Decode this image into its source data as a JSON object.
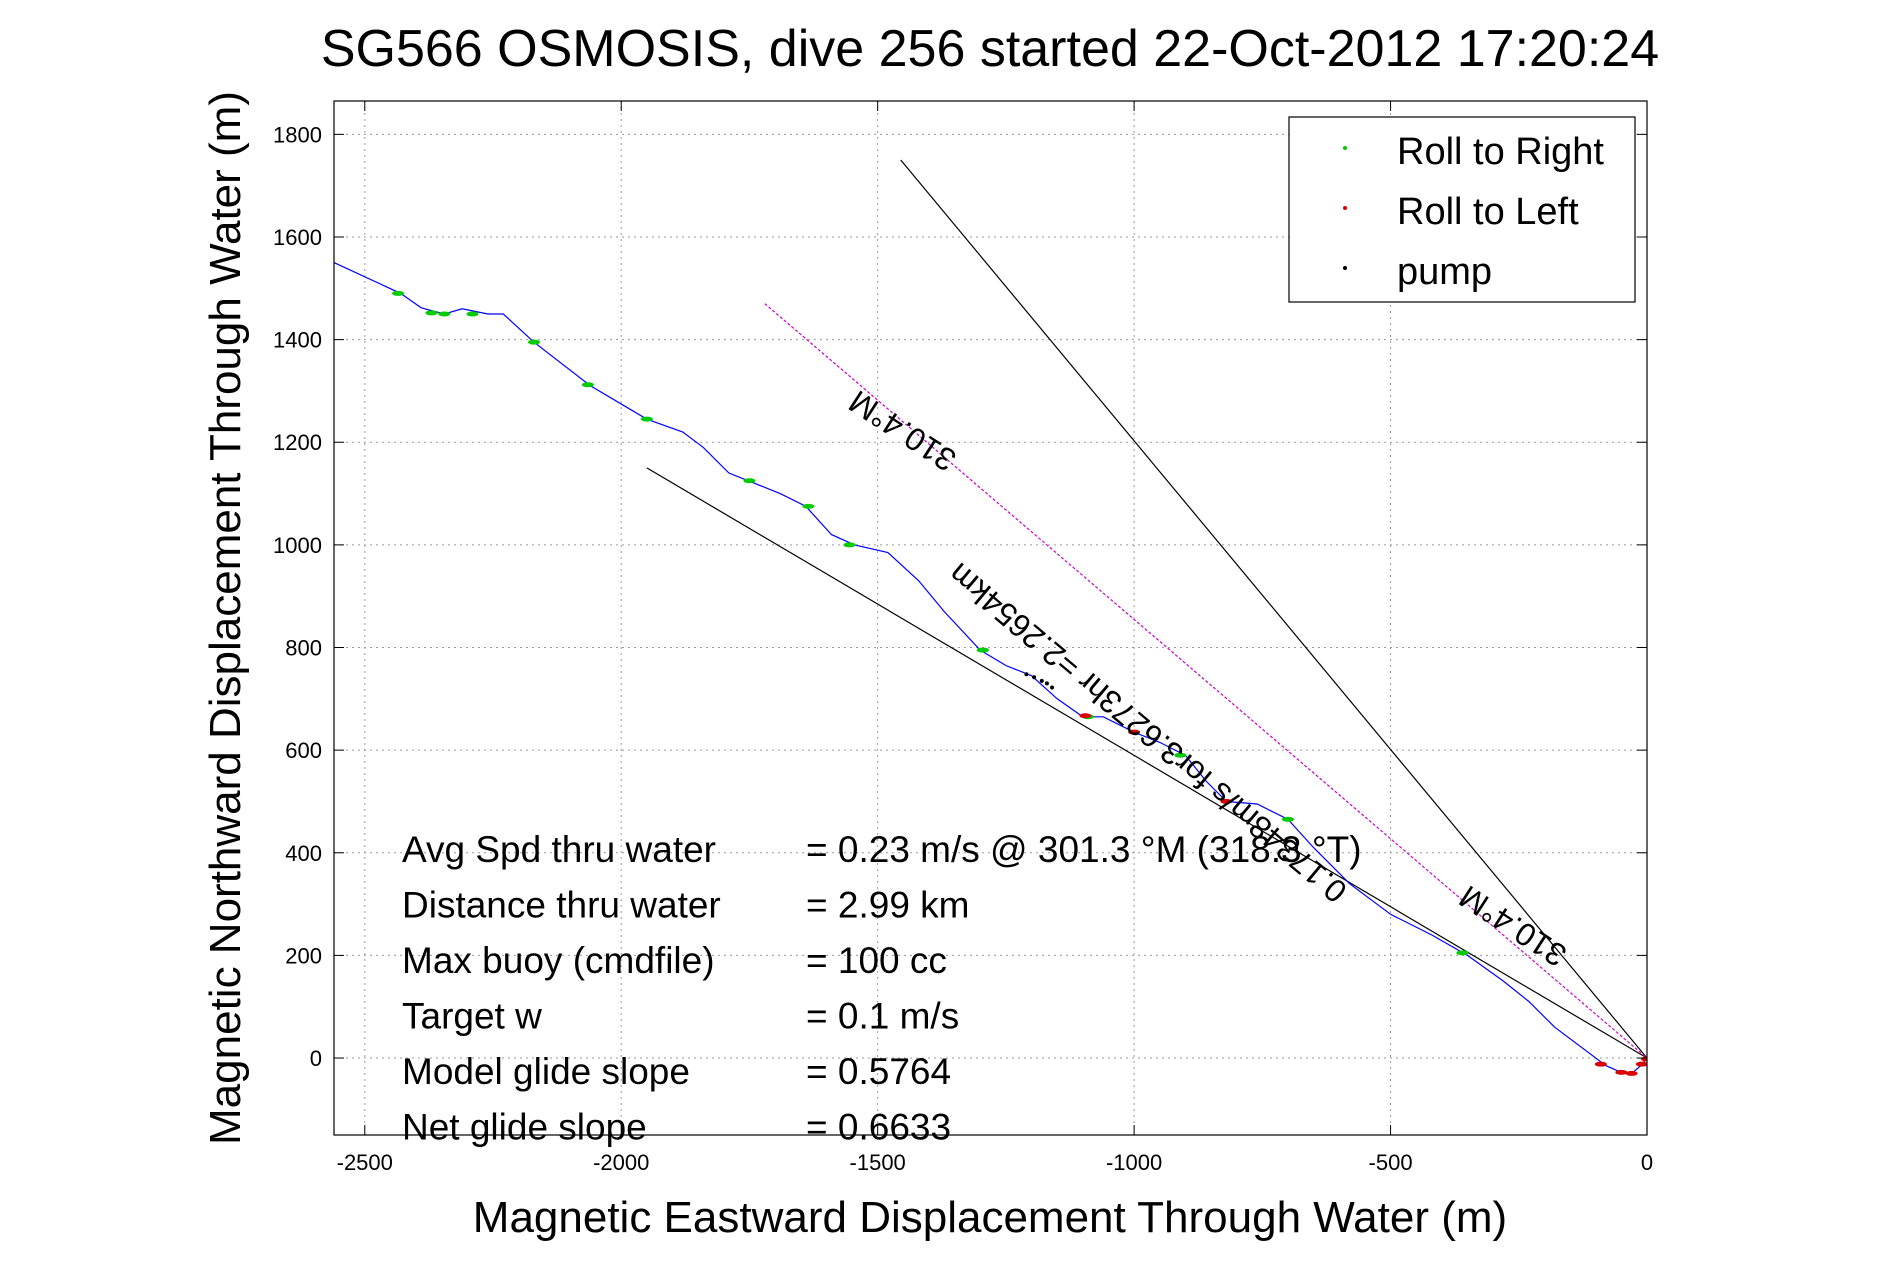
{
  "chart_data": {
    "type": "line",
    "title": "SG566 OSMOSIS, dive 256 started 22-Oct-2012 17:20:24",
    "xlabel": "Magnetic Eastward Displacement Through Water (m)",
    "ylabel": "Magnetic Northward Displacement Through Water (m)",
    "xlim": [
      -2560,
      0
    ],
    "ylim": [
      -150,
      1865
    ],
    "xticks": [
      -2500,
      -2000,
      -1500,
      -1000,
      -500,
      0
    ],
    "yticks": [
      0,
      200,
      400,
      600,
      800,
      1000,
      1200,
      1400,
      1600,
      1800
    ],
    "grid": true,
    "legend": {
      "placement": "top-right",
      "entries": [
        {
          "label": "Roll to Right",
          "color": "#00cc00"
        },
        {
          "label": "Roll to Left",
          "color": "#dd0000"
        },
        {
          "label": "pump",
          "color": "#000000"
        }
      ]
    },
    "track_color": "#0000ff",
    "track": [
      [
        -2560,
        1550
      ],
      [
        -2430,
        1490
      ],
      [
        -2390,
        1462
      ],
      [
        -2345,
        1450
      ],
      [
        -2310,
        1460
      ],
      [
        -2260,
        1450
      ],
      [
        -2230,
        1450
      ],
      [
        -2170,
        1395
      ],
      [
        -2060,
        1310
      ],
      [
        -1950,
        1245
      ],
      [
        -1880,
        1220
      ],
      [
        -1840,
        1190
      ],
      [
        -1790,
        1140
      ],
      [
        -1740,
        1120
      ],
      [
        -1690,
        1100
      ],
      [
        -1640,
        1075
      ],
      [
        -1590,
        1020
      ],
      [
        -1545,
        1000
      ],
      [
        -1480,
        985
      ],
      [
        -1420,
        930
      ],
      [
        -1370,
        870
      ],
      [
        -1300,
        795
      ],
      [
        -1250,
        765
      ],
      [
        -1200,
        745
      ],
      [
        -1150,
        700
      ],
      [
        -1100,
        665
      ],
      [
        -1060,
        665
      ],
      [
        -1000,
        635
      ],
      [
        -950,
        615
      ],
      [
        -900,
        590
      ],
      [
        -860,
        540
      ],
      [
        -820,
        500
      ],
      [
        -760,
        495
      ],
      [
        -700,
        465
      ],
      [
        -650,
        410
      ],
      [
        -580,
        340
      ],
      [
        -500,
        280
      ],
      [
        -420,
        240
      ],
      [
        -350,
        200
      ],
      [
        -280,
        150
      ],
      [
        -230,
        110
      ],
      [
        -180,
        60
      ],
      [
        -120,
        15
      ],
      [
        -80,
        -15
      ],
      [
        -50,
        -28
      ],
      [
        -30,
        -30
      ],
      [
        -12,
        -15
      ],
      [
        0,
        0
      ]
    ],
    "roll_right": [
      [
        -2435,
        1490
      ],
      [
        -2370,
        1452
      ],
      [
        -2345,
        1450
      ],
      [
        -2290,
        1450
      ],
      [
        -2170,
        1395
      ],
      [
        -2065,
        1312
      ],
      [
        -1950,
        1245
      ],
      [
        -1750,
        1125
      ],
      [
        -1635,
        1075
      ],
      [
        -1555,
        1000
      ],
      [
        -1295,
        795
      ],
      [
        -1090,
        665
      ],
      [
        -910,
        590
      ],
      [
        -700,
        465
      ],
      [
        -360,
        205
      ]
    ],
    "roll_left": [
      [
        -1095,
        667
      ],
      [
        -1000,
        635
      ],
      [
        -820,
        500
      ],
      [
        -90,
        -12
      ],
      [
        -50,
        -28
      ],
      [
        -30,
        -30
      ],
      [
        -10,
        -12
      ],
      [
        0,
        -2
      ]
    ],
    "pump": [
      [
        -1210,
        748
      ],
      [
        -1195,
        742
      ],
      [
        -1180,
        735
      ],
      [
        -1170,
        730
      ],
      [
        -1160,
        722
      ]
    ],
    "reference_lines": [
      {
        "color": "#000000",
        "points": [
          [
            -1950,
            1150
          ],
          [
            0,
            0
          ]
        ]
      },
      {
        "color": "#000000",
        "points": [
          [
            -1455,
            1750
          ],
          [
            0,
            0
          ]
        ]
      },
      {
        "color": "#cc00cc",
        "points": [
          [
            -1720,
            1470
          ],
          [
            0,
            0
          ]
        ]
      }
    ],
    "line_labels": [
      {
        "text": "310.4°M",
        "at": [
          -1440,
          1240
        ],
        "angle": 213
      },
      {
        "text": "0.17348m/s for3.6273hr =2.2654km",
        "at": [
          -960,
          650
        ],
        "angle": 220
      },
      {
        "text": "310.4°M",
        "at": [
          -250,
          275
        ],
        "angle": 213
      }
    ],
    "stats": [
      {
        "label": "Avg Spd thru water",
        "value": "=  0.23 m/s @  301.3 °M (318.3 °T)"
      },
      {
        "label": "Distance thru water",
        "value": "=  2.99 km"
      },
      {
        "label": "Max buoy (cmdfile)",
        "value": "= 100 cc"
      },
      {
        "label": "Target w",
        "value": "= 0.1 m/s"
      },
      {
        "label": "Model glide slope",
        "value": "= 0.5764"
      },
      {
        "label": "Net glide slope",
        "value": "= 0.6633"
      }
    ]
  }
}
